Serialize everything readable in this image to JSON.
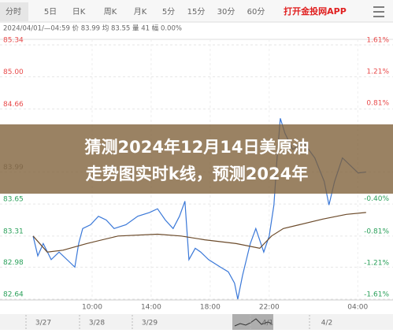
{
  "tabs": [
    "分时",
    "5日",
    "日K",
    "周K",
    "月K",
    "5分",
    "15分",
    "30分",
    "60分"
  ],
  "app_button": "打开金投网APP",
  "info": "2024/04/01/—04:59 价 83.99 均 83.55 量 41 幅 0.00%",
  "overlay": {
    "lines": [
      "猜测2024年12月14日美原油",
      "走势图实时k线，预测2024年"
    ]
  },
  "navigator": {
    "dates": [
      "3/27",
      "3/28",
      "3/29",
      "4/1",
      "4/2"
    ]
  },
  "chart_data": {
    "type": "line",
    "xlim": [
      0,
      23
    ],
    "xticks": [
      {
        "value": 4,
        "label": "10:00"
      },
      {
        "value": 8,
        "label": "14:00"
      },
      {
        "value": 12,
        "label": "18:00"
      },
      {
        "value": 16,
        "label": "22:00"
      },
      {
        "value": 22,
        "label": "04:00"
      }
    ],
    "ylim": [
      82.64,
      85.34
    ],
    "yticks": [
      85.34,
      {
        "value": 85.0,
        "label": "85.00"
      },
      84.66,
      83.99,
      83.65,
      83.31,
      82.98,
      82.64
    ],
    "y2lim": [
      -1.61,
      1.61
    ],
    "y2ticks": [
      {
        "value": 1.61,
        "label": "1.61%"
      },
      {
        "value": 1.21,
        "label": "1.21%"
      },
      {
        "value": 0.81,
        "label": "0.81%"
      },
      {
        "value": -0.4,
        "label": "-0.40%"
      },
      {
        "value": -0.81,
        "label": "-0.81%"
      },
      {
        "value": -1.21,
        "label": "-1.21%"
      },
      {
        "value": -1.61,
        "label": "-1.61%"
      }
    ],
    "grid": true,
    "series": [
      {
        "color": "#3a78d8",
        "x": [
          0,
          0.32,
          0.69,
          1.23,
          1.76,
          2.56,
          2.83,
          3.09,
          3.36,
          3.89,
          4.43,
          4.96,
          5.49,
          6.29,
          7.09,
          7.89,
          8.43,
          8.96,
          9.49,
          9.92,
          10.29,
          10.56,
          10.99,
          11.36,
          11.89,
          12.69,
          13.23,
          13.65,
          13.87,
          14.19,
          14.72,
          15.09,
          15.63,
          16.0,
          16.32,
          16.53,
          16.75,
          17.07,
          17.6,
          18.29,
          19.09,
          19.73,
          20.05,
          20.43,
          20.96,
          21.49,
          22.03,
          22.56
        ],
        "values": [
          83.31,
          83.1,
          83.23,
          83.06,
          83.14,
          83.02,
          82.98,
          83.23,
          83.39,
          83.43,
          83.52,
          83.48,
          83.39,
          83.43,
          83.52,
          83.56,
          83.6,
          83.48,
          83.39,
          83.52,
          83.68,
          83.06,
          83.18,
          83.14,
          83.06,
          82.98,
          82.93,
          82.81,
          82.64,
          82.89,
          83.23,
          83.39,
          83.14,
          83.31,
          83.64,
          84.14,
          84.56,
          84.4,
          84.23,
          84.31,
          84.14,
          83.89,
          83.64,
          83.89,
          84.14,
          84.06,
          83.98,
          83.99
        ]
      },
      {
        "color": "#6b4a2a",
        "x": [
          0,
          0.96,
          2.03,
          3.63,
          5.76,
          8.43,
          10.03,
          11.63,
          13.76,
          15.36,
          16.16,
          16.96,
          18.03,
          19.63,
          21.23,
          22.56
        ],
        "values": [
          83.31,
          83.14,
          83.16,
          83.23,
          83.31,
          83.33,
          83.31,
          83.27,
          83.23,
          83.18,
          83.31,
          83.39,
          83.43,
          83.49,
          83.54,
          83.56
        ]
      }
    ]
  }
}
